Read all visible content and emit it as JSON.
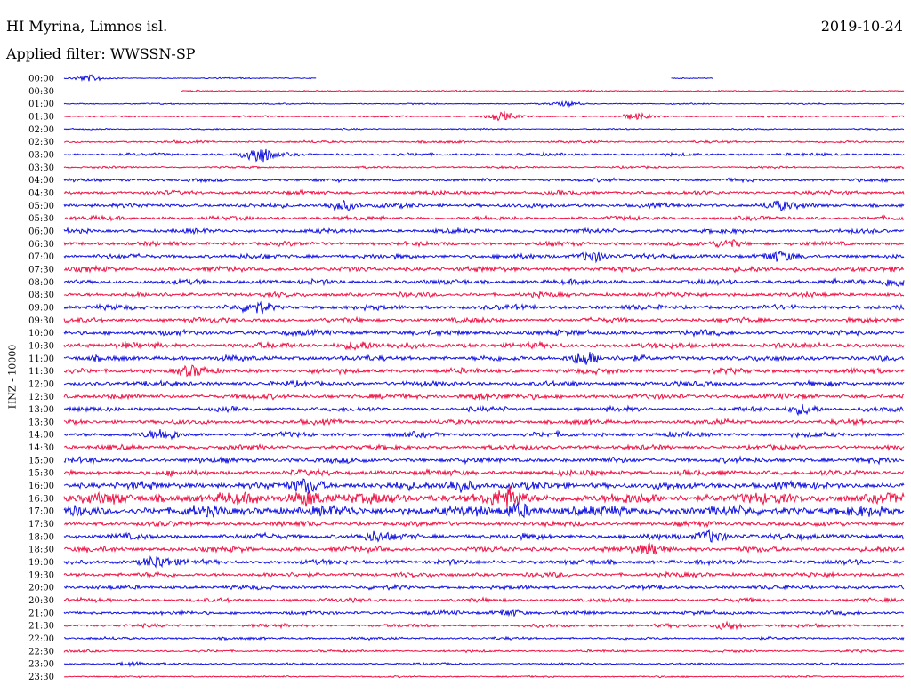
{
  "header": {
    "station": "HI Myrina, Limnos isl.",
    "date": "2019-10-24",
    "filter": "Applied filter: WWSSN-SP"
  },
  "chart_data": {
    "type": "line",
    "ylabel": "HNZ - 10000",
    "row_labels": [
      "00:00",
      "00:30",
      "01:00",
      "01:30",
      "02:00",
      "02:30",
      "03:00",
      "03:30",
      "04:00",
      "04:30",
      "05:00",
      "05:30",
      "06:00",
      "06:30",
      "07:00",
      "07:30",
      "08:00",
      "08:30",
      "09:00",
      "09:30",
      "10:00",
      "10:30",
      "11:00",
      "11:30",
      "12:00",
      "12:30",
      "13:00",
      "13:30",
      "14:00",
      "14:30",
      "15:00",
      "15:30",
      "16:00",
      "16:30",
      "17:00",
      "17:30",
      "18:00",
      "18:30",
      "19:00",
      "19:30",
      "20:00",
      "20:30",
      "21:00",
      "21:30",
      "22:00",
      "22:30",
      "23:00",
      "23:30"
    ],
    "colors": {
      "odd": "#1010e0",
      "even": "#ee1144"
    }
  }
}
